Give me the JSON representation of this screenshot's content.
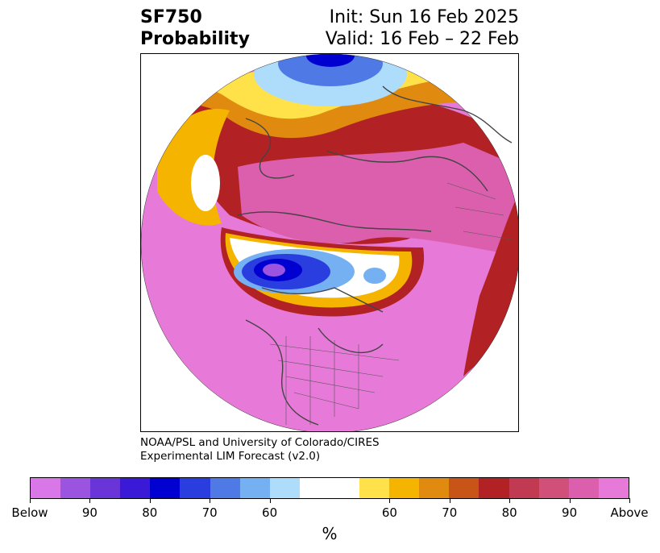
{
  "header": {
    "variable": "SF750",
    "product": "Probability",
    "init": "Init: Sun 16 Feb 2025",
    "valid": "Valid: 16 Feb – 22 Feb"
  },
  "credit": {
    "line1": "NOAA/PSL and University of Colorado/CIRES",
    "line2": "Experimental LIM Forecast (v2.0)"
  },
  "colorbar": {
    "unit": "%",
    "segments": [
      {
        "color": "#d977e8"
      },
      {
        "color": "#9b54e0"
      },
      {
        "color": "#6a35d8"
      },
      {
        "color": "#3a1ad6"
      },
      {
        "color": "#0000d0"
      },
      {
        "color": "#2a3ee0"
      },
      {
        "color": "#4f7ae6"
      },
      {
        "color": "#74b0f2"
      },
      {
        "color": "#aedcfb"
      },
      {
        "color": "#ffffff"
      },
      {
        "color": "#ffffff"
      },
      {
        "color": "#ffe14a"
      },
      {
        "color": "#f4b400"
      },
      {
        "color": "#e08a10"
      },
      {
        "color": "#c85418"
      },
      {
        "color": "#b22224"
      },
      {
        "color": "#c23a52"
      },
      {
        "color": "#d0507a"
      },
      {
        "color": "#dc5fae"
      },
      {
        "color": "#e77ad8"
      }
    ],
    "ticks": [
      {
        "label": "Below"
      },
      {
        "label": "90"
      },
      {
        "label": "80"
      },
      {
        "label": "70"
      },
      {
        "label": "60"
      },
      {
        "label": "60"
      },
      {
        "label": "70"
      },
      {
        "label": "80"
      },
      {
        "label": "90"
      },
      {
        "label": "Above"
      }
    ]
  }
}
